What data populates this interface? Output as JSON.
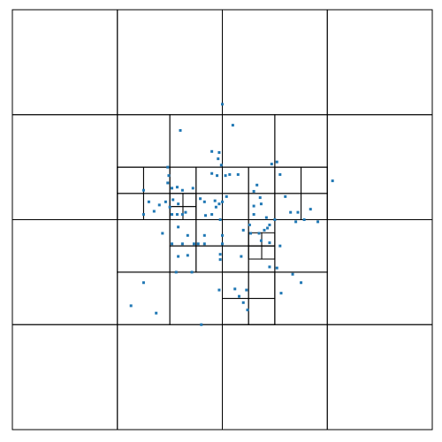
{
  "figure": {
    "type": "quadtree",
    "domain": [
      0,
      4
    ],
    "cell_stroke": "#000000",
    "point_fill": "#1f77b4",
    "cells": [
      [
        0,
        0,
        1
      ],
      [
        1,
        0,
        1
      ],
      [
        2,
        0,
        1
      ],
      [
        3,
        0,
        1
      ],
      [
        0,
        1,
        1
      ],
      [
        3,
        1,
        1
      ],
      [
        0,
        2,
        1
      ],
      [
        3,
        2,
        1
      ],
      [
        0,
        3,
        1
      ],
      [
        1,
        3,
        1
      ],
      [
        2,
        3,
        1
      ],
      [
        3,
        3,
        1
      ],
      [
        1,
        1,
        0.5
      ],
      [
        1.5,
        1,
        0.5
      ],
      [
        2,
        1,
        0.5
      ],
      [
        2.5,
        1,
        0.5
      ],
      [
        1,
        1.5,
        0.5
      ],
      [
        2.5,
        1.5,
        0.5
      ],
      [
        1,
        2,
        0.5
      ],
      [
        2.5,
        2,
        0.5
      ],
      [
        1,
        2.5,
        0.5
      ],
      [
        1.5,
        2.5,
        0.5
      ],
      [
        2,
        2.5,
        0.5
      ],
      [
        2.5,
        2.5,
        0.5
      ],
      [
        1.5,
        1.5,
        0.25
      ],
      [
        1.75,
        1.5,
        0.25
      ],
      [
        2,
        1.5,
        0.25
      ],
      [
        2.25,
        1.5,
        0.25
      ],
      [
        1.5,
        1.75,
        0.25
      ],
      [
        1.75,
        1.75,
        0.25
      ],
      [
        2,
        1.75,
        0.25
      ],
      [
        2.25,
        1.75,
        0.25
      ],
      [
        1.5,
        2,
        0.25
      ],
      [
        1.75,
        2,
        0.25
      ],
      [
        2,
        2,
        0.25
      ],
      [
        2.25,
        2,
        0.25
      ],
      [
        1.5,
        2.25,
        0.25
      ],
      [
        1.75,
        2.25,
        0.25
      ],
      [
        2,
        2.25,
        0.25
      ],
      [
        2.25,
        2.25,
        0.25
      ],
      [
        1,
        1.5,
        0.25
      ],
      [
        1.25,
        1.5,
        0.25
      ],
      [
        1,
        1.75,
        0.25
      ],
      [
        1.25,
        1.75,
        0.25
      ],
      [
        2.5,
        1.5,
        0.25
      ],
      [
        2.75,
        1.5,
        0.25
      ],
      [
        2.5,
        1.75,
        0.25
      ],
      [
        2.75,
        1.75,
        0.25
      ],
      [
        2,
        2.5,
        0.25
      ],
      [
        2.25,
        2.5,
        0.25
      ],
      [
        2,
        2.75,
        0.25
      ],
      [
        2.25,
        2.75,
        0.25
      ],
      [
        1.5,
        1.75,
        0.125
      ],
      [
        1.625,
        1.75,
        0.125
      ],
      [
        1.5,
        1.875,
        0.125
      ],
      [
        1.625,
        1.875,
        0.125
      ],
      [
        2.25,
        2.125,
        0.125
      ],
      [
        2.375,
        2.125,
        0.125
      ],
      [
        2.25,
        2.25,
        0.125
      ],
      [
        2.375,
        2.25,
        0.125
      ]
    ],
    "points": [
      [
        2.0,
        0.9
      ],
      [
        2.1,
        1.1
      ],
      [
        1.6,
        1.15
      ],
      [
        1.9,
        1.35
      ],
      [
        1.97,
        1.36
      ],
      [
        1.96,
        1.42
      ],
      [
        1.99,
        1.48
      ],
      [
        1.48,
        1.5
      ],
      [
        1.49,
        1.58
      ],
      [
        1.9,
        1.56
      ],
      [
        1.95,
        1.58
      ],
      [
        2.03,
        1.58
      ],
      [
        2.07,
        1.57
      ],
      [
        2.15,
        1.57
      ],
      [
        2.47,
        1.47
      ],
      [
        2.52,
        1.45
      ],
      [
        2.55,
        1.57
      ],
      [
        3.05,
        1.63
      ],
      [
        1.25,
        1.72
      ],
      [
        1.48,
        1.65
      ],
      [
        1.52,
        1.7
      ],
      [
        1.57,
        1.69
      ],
      [
        1.62,
        1.72
      ],
      [
        1.72,
        1.7
      ],
      [
        2.33,
        1.67
      ],
      [
        2.3,
        1.73
      ],
      [
        2.36,
        1.79
      ],
      [
        1.53,
        1.81
      ],
      [
        1.58,
        1.85
      ],
      [
        1.3,
        1.83
      ],
      [
        1.4,
        1.86
      ],
      [
        1.46,
        1.83
      ],
      [
        1.52,
        1.95
      ],
      [
        1.62,
        1.95
      ],
      [
        1.79,
        1.8
      ],
      [
        1.83,
        1.83
      ],
      [
        1.93,
        1.82
      ],
      [
        1.97,
        1.85
      ],
      [
        2.0,
        1.83
      ],
      [
        2.04,
        1.78
      ],
      [
        1.94,
        1.88
      ],
      [
        1.84,
        1.96
      ],
      [
        1.9,
        1.95
      ],
      [
        1.98,
        2.0
      ],
      [
        2.3,
        1.87
      ],
      [
        1.25,
        1.95
      ],
      [
        1.35,
        1.92
      ],
      [
        1.5,
        1.88
      ],
      [
        1.57,
        1.95
      ],
      [
        1.65,
        1.93
      ],
      [
        2.37,
        1.85
      ],
      [
        2.42,
        1.98
      ],
      [
        2.5,
        2.0
      ],
      [
        2.3,
        1.95
      ],
      [
        2.45,
        2.05
      ],
      [
        2.4,
        2.1
      ],
      [
        2.35,
        2.13
      ],
      [
        2.26,
        2.05
      ],
      [
        2.65,
        1.93
      ],
      [
        2.72,
        1.93
      ],
      [
        2.6,
        1.78
      ],
      [
        2.7,
        2.02
      ],
      [
        2.84,
        1.9
      ],
      [
        2.78,
        2.0
      ],
      [
        2.91,
        2.02
      ],
      [
        1.58,
        2.07
      ],
      [
        1.52,
        2.23
      ],
      [
        1.43,
        2.13
      ],
      [
        1.62,
        2.23
      ],
      [
        1.67,
        2.15
      ],
      [
        1.73,
        2.23
      ],
      [
        1.77,
        2.23
      ],
      [
        1.83,
        2.23
      ],
      [
        1.83,
        2.15
      ],
      [
        2.0,
        2.15
      ],
      [
        2.0,
        2.23
      ],
      [
        2.2,
        2.1
      ],
      [
        2.27,
        2.13
      ],
      [
        2.37,
        2.2
      ],
      [
        2.45,
        2.22
      ],
      [
        2.43,
        2.08
      ],
      [
        2.55,
        2.25
      ],
      [
        1.58,
        2.35
      ],
      [
        1.67,
        2.34
      ],
      [
        1.98,
        2.33
      ],
      [
        1.98,
        2.38
      ],
      [
        2.18,
        2.35
      ],
      [
        1.56,
        2.5
      ],
      [
        1.71,
        2.5
      ],
      [
        2.45,
        2.45
      ],
      [
        2.52,
        2.46
      ],
      [
        2.67,
        2.52
      ],
      [
        1.25,
        2.6
      ],
      [
        2.75,
        2.6
      ],
      [
        2.56,
        2.7
      ],
      [
        1.97,
        2.67
      ],
      [
        2.12,
        2.66
      ],
      [
        2.23,
        2.67
      ],
      [
        2.16,
        2.73
      ],
      [
        2.2,
        2.79
      ],
      [
        2.24,
        2.86
      ],
      [
        1.13,
        2.82
      ],
      [
        1.37,
        2.89
      ],
      [
        1.8,
        3.0
      ]
    ]
  }
}
